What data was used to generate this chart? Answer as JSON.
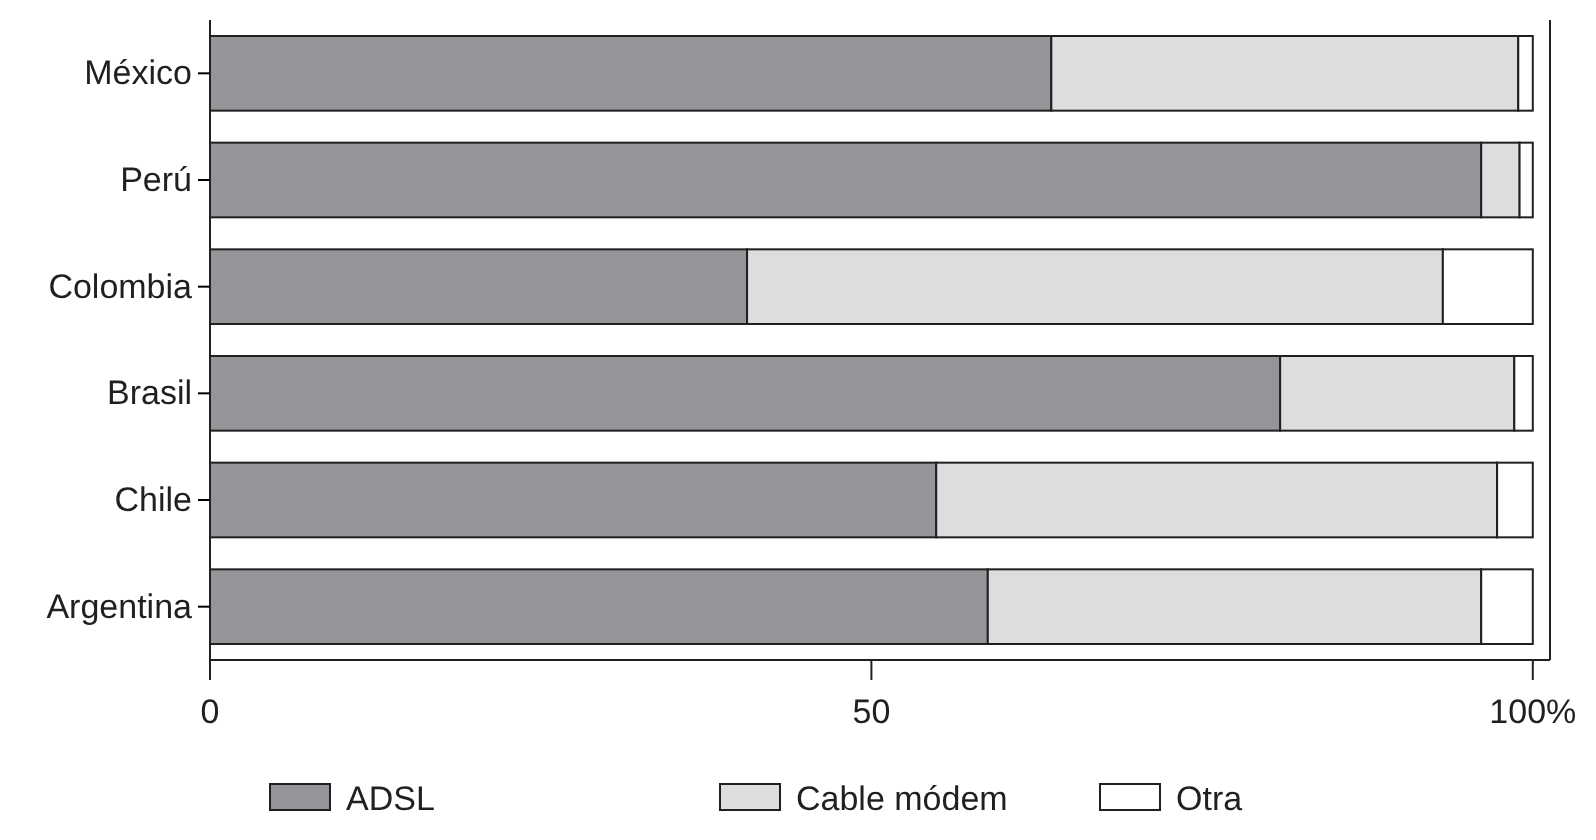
{
  "chart_data": {
    "type": "bar",
    "orientation": "horizontal",
    "stacked": true,
    "categories": [
      "México",
      "Perú",
      "Colombia",
      "Brasil",
      "Chile",
      "Argentina"
    ],
    "series": [
      {
        "name": "ADSL",
        "color": "#939598",
        "values": [
          63.6,
          96.1,
          40.6,
          80.9,
          54.9,
          58.8
        ]
      },
      {
        "name": "Cable módem",
        "color": "#dcdddf",
        "values": [
          35.3,
          2.9,
          52.6,
          17.7,
          42.4,
          37.3
        ]
      },
      {
        "name": "Otra",
        "color": "#ffffff",
        "values": [
          1.1,
          1.0,
          6.8,
          1.4,
          2.7,
          3.9
        ]
      }
    ],
    "xlim": [
      0,
      101.3
    ],
    "xticks": [
      0,
      50,
      {
        "value": 100,
        "label": "100%"
      }
    ],
    "grid": false,
    "legend": "bottom"
  }
}
